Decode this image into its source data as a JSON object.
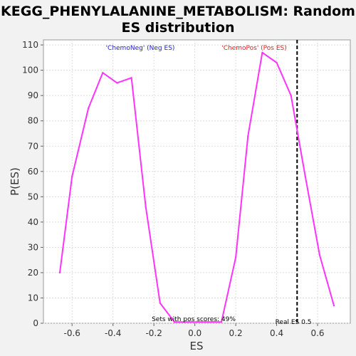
{
  "chart_data": {
    "type": "line",
    "title_line1": "KEGG_PHENYLALANINE_METABOLISM: Random",
    "title_line2": "ES distribution",
    "xlabel": "ES",
    "ylabel": "P(ES)",
    "xlim": [
      -0.74,
      0.76
    ],
    "ylim": [
      0,
      112
    ],
    "xticks": [
      -0.6,
      -0.4,
      -0.2,
      0.0,
      0.2,
      0.4,
      0.6
    ],
    "xtick_labels": [
      "-0.6",
      "-0.4",
      "-0.2",
      "0.0",
      "0.2",
      "0.4",
      "0.6"
    ],
    "yticks": [
      0,
      10,
      20,
      30,
      40,
      50,
      60,
      70,
      80,
      90,
      100,
      110
    ],
    "ytick_labels": [
      "0",
      "10",
      "20",
      "30",
      "40",
      "50",
      "60",
      "70",
      "80",
      "90",
      "100",
      "110"
    ],
    "grid": true,
    "series": [
      {
        "color": "#ff33ff",
        "x": [
          -0.66,
          -0.6,
          -0.52,
          -0.45,
          -0.38,
          -0.31,
          -0.24,
          -0.17,
          -0.1,
          0.13,
          0.2,
          0.26,
          0.33,
          0.4,
          0.47,
          0.54,
          0.61,
          0.68
        ],
        "y": [
          20,
          58,
          85,
          99,
          95,
          97,
          46,
          8,
          0.5,
          0.5,
          26,
          74,
          107,
          103,
          90,
          58,
          27,
          7
        ]
      }
    ],
    "annotations": {
      "neg_label": "'ChemoNeg' (Neg ES)",
      "neg_color": "#2222cc",
      "pos_label": "'ChemoPos' (Pos ES)",
      "pos_color": "#dd2222",
      "pos_scores_text": "Sets with pos scores: 49%",
      "real_es_text": "Real ES 0.5",
      "real_es_value": 0.5
    }
  }
}
